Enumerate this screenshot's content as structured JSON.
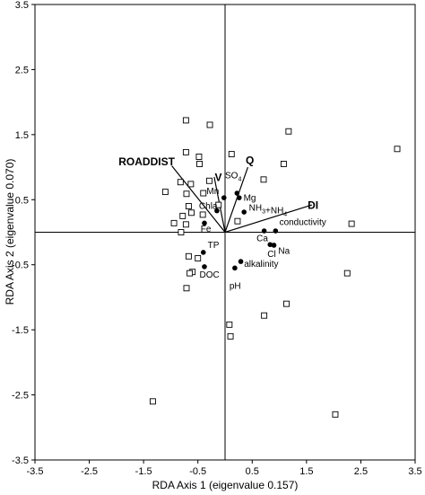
{
  "chart_data": {
    "type": "scatter",
    "title": "",
    "xlabel": "RDA Axis 1 (eigenvalue 0.157)",
    "ylabel": "RDA Axis 2 (eigenvalue 0.070)",
    "xlim": [
      -3.5,
      3.5
    ],
    "ylim": [
      -3.5,
      3.5
    ],
    "xticks": [
      "-3.5",
      "-2.5",
      "-1.5",
      "-0.5",
      "0.5",
      "1.5",
      "2.5",
      "3.5"
    ],
    "yticks": [
      "3.5",
      "2.5",
      "1.5",
      "0.5",
      "-0.5",
      "-1.5",
      "-2.5",
      "-3.5"
    ],
    "grid": false,
    "sites": [
      {
        "x": -0.72,
        "y": 1.72
      },
      {
        "x": -0.28,
        "y": 1.65
      },
      {
        "x": 1.17,
        "y": 1.55
      },
      {
        "x": 3.17,
        "y": 1.28
      },
      {
        "x": -0.72,
        "y": 1.23
      },
      {
        "x": -0.48,
        "y": 1.16
      },
      {
        "x": 0.12,
        "y": 1.2
      },
      {
        "x": -0.47,
        "y": 1.05
      },
      {
        "x": 1.08,
        "y": 1.05
      },
      {
        "x": -0.29,
        "y": 0.79
      },
      {
        "x": -0.82,
        "y": 0.77
      },
      {
        "x": -0.63,
        "y": 0.74
      },
      {
        "x": 0.71,
        "y": 0.81
      },
      {
        "x": -1.1,
        "y": 0.62
      },
      {
        "x": -0.71,
        "y": 0.59
      },
      {
        "x": -0.4,
        "y": 0.6
      },
      {
        "x": -0.67,
        "y": 0.4
      },
      {
        "x": -0.12,
        "y": 0.42
      },
      {
        "x": -0.62,
        "y": 0.3
      },
      {
        "x": -0.78,
        "y": 0.25
      },
      {
        "x": -0.41,
        "y": 0.27
      },
      {
        "x": -0.94,
        "y": 0.14
      },
      {
        "x": -0.72,
        "y": 0.12
      },
      {
        "x": 0.23,
        "y": 0.17
      },
      {
        "x": -0.81,
        "y": 0.0
      },
      {
        "x": 2.33,
        "y": 0.13
      },
      {
        "x": -0.67,
        "y": -0.37
      },
      {
        "x": -0.5,
        "y": -0.4
      },
      {
        "x": -0.6,
        "y": -0.61
      },
      {
        "x": -0.65,
        "y": -0.63
      },
      {
        "x": 2.25,
        "y": -0.63
      },
      {
        "x": -0.71,
        "y": -0.86
      },
      {
        "x": 1.13,
        "y": -1.1
      },
      {
        "x": 0.72,
        "y": -1.28
      },
      {
        "x": 0.08,
        "y": -1.42
      },
      {
        "x": 0.1,
        "y": -1.6
      },
      {
        "x": -1.33,
        "y": -2.6
      },
      {
        "x": 2.03,
        "y": -2.8
      }
    ],
    "species": [
      {
        "name": "Mn",
        "x": -0.02,
        "y": 0.53,
        "label_x": -0.34,
        "label_y": 0.59
      },
      {
        "name": "SO4",
        "x": 0.22,
        "y": 0.6,
        "label_x": 0.0,
        "label_y": 0.83
      },
      {
        "name": "Mg",
        "x": 0.26,
        "y": 0.53,
        "label_x": 0.34,
        "label_y": 0.48
      },
      {
        "name": "Chla",
        "x": -0.15,
        "y": 0.33,
        "label_x": -0.48,
        "label_y": 0.36
      },
      {
        "name": "NH3+NH4",
        "x": 0.35,
        "y": 0.31,
        "label_x": 0.44,
        "label_y": 0.33
      },
      {
        "name": "Fe",
        "x": -0.38,
        "y": 0.14,
        "label_x": -0.45,
        "label_y": 0.01
      },
      {
        "name": "conductivity",
        "x": 0.93,
        "y": 0.02,
        "label_x": 1.0,
        "label_y": 0.11
      },
      {
        "name": "Ca",
        "x": 0.72,
        "y": 0.02,
        "label_x": 0.58,
        "label_y": -0.14
      },
      {
        "name": "Cl",
        "x": 0.83,
        "y": -0.19,
        "label_x": 0.78,
        "label_y": -0.38
      },
      {
        "name": "Na",
        "x": 0.9,
        "y": -0.2,
        "label_x": 0.98,
        "label_y": -0.33
      },
      {
        "name": "TP",
        "x": -0.4,
        "y": -0.31,
        "label_x": -0.32,
        "label_y": -0.24
      },
      {
        "name": "alkalinity",
        "x": 0.29,
        "y": -0.45,
        "label_x": 0.35,
        "label_y": -0.53
      },
      {
        "name": "DOC",
        "x": -0.38,
        "y": -0.53,
        "label_x": -0.47,
        "label_y": -0.7
      },
      {
        "name": "pH",
        "x": 0.18,
        "y": -0.55,
        "label_x": 0.08,
        "label_y": -0.87
      }
    ],
    "vectors": [
      {
        "name": "ROADDIST",
        "x": -0.98,
        "y": 1.02,
        "label_x": -1.96,
        "label_y": 1.03
      },
      {
        "name": "V",
        "x": -0.2,
        "y": 0.85,
        "label_x": -0.19,
        "label_y": 0.79
      },
      {
        "name": "Q",
        "x": 0.42,
        "y": 1.0,
        "label_x": 0.38,
        "label_y": 1.05
      },
      {
        "name": "DI",
        "x": 1.6,
        "y": 0.42,
        "label_x": 1.52,
        "label_y": 0.36
      }
    ]
  }
}
